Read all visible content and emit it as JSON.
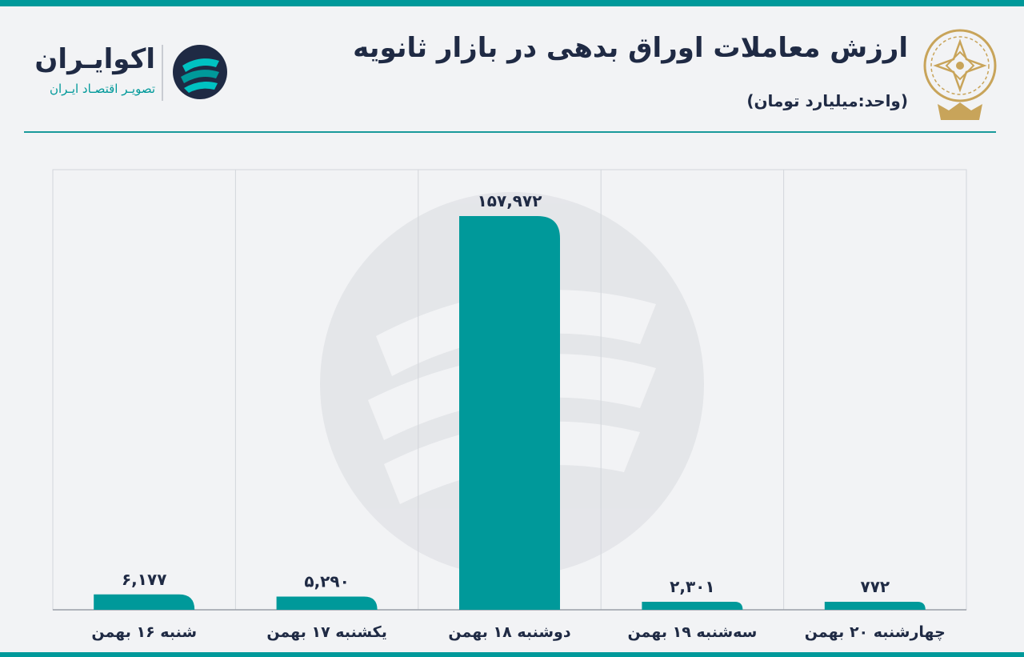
{
  "header": {
    "title": "ارزش معاملات اوراق بدهی در بازار ثانویه",
    "subtitle": "(واحد:میلیارد تومان)"
  },
  "brand": {
    "name": "اکوایـران",
    "tagline": "تصویـر اقتصـاد ایـران",
    "accent": "#00999a",
    "dark": "#1f2a44"
  },
  "chart_data": {
    "type": "bar",
    "categories": [
      "شنبه ۱۶ بهمن",
      "یکشنبه ۱۷ بهمن",
      "دوشنبه ۱۸ بهمن",
      "سه‌شنبه ۱۹ بهمن",
      "چهارشنبه ۲۰ بهمن"
    ],
    "values": [
      6177,
      5290,
      157972,
      2301,
      772
    ],
    "value_labels": [
      "۶,۱۷۷",
      "۵,۲۹۰",
      "۱۵۷,۹۷۲",
      "۲,۳۰۱",
      "۷۷۲"
    ],
    "title": "ارزش معاملات اوراق بدهی در بازار ثانویه",
    "ylabel": "",
    "xlabel": "",
    "bar_color": "#00999a",
    "grid": true
  }
}
